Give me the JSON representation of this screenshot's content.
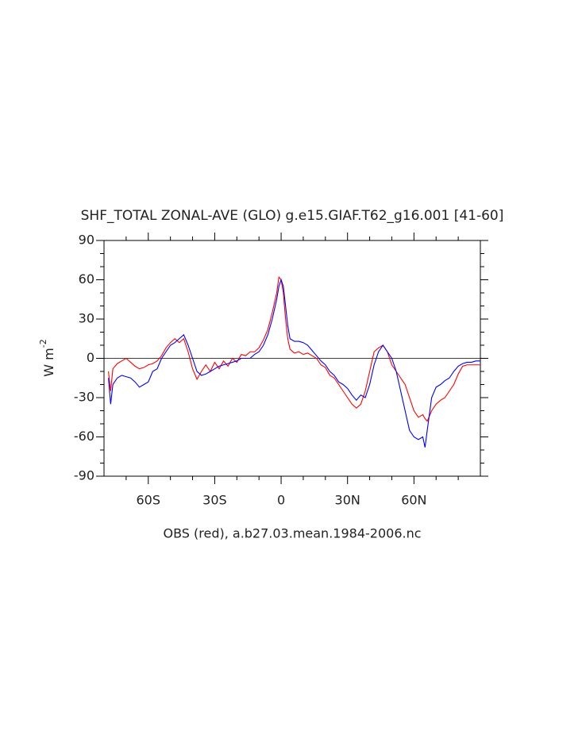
{
  "chart_data": {
    "type": "line",
    "title": "SHF_TOTAL ZONAL-AVE (GLO) g.e15.GIAF.T62_g16.001 [41-60]",
    "subtitle": "OBS (red), a.b27.03.mean.1984-2006.nc",
    "y_label": {
      "base": "W m",
      "exponent": "-2"
    },
    "x": [
      -78,
      -77,
      -76,
      -74,
      -72,
      -70,
      -68,
      -66,
      -64,
      -62,
      -60,
      -58,
      -56,
      -54,
      -52,
      -50,
      -48,
      -46,
      -44,
      -42,
      -40,
      -38,
      -36,
      -34,
      -32,
      -30,
      -28,
      -26,
      -24,
      -22,
      -20,
      -18,
      -16,
      -14,
      -12,
      -10,
      -8,
      -6,
      -4,
      -2,
      -1,
      0,
      1,
      2,
      3,
      4,
      6,
      8,
      10,
      12,
      14,
      16,
      18,
      20,
      22,
      24,
      26,
      28,
      30,
      32,
      34,
      36,
      38,
      40,
      42,
      44,
      46,
      48,
      50,
      52,
      54,
      56,
      58,
      60,
      62,
      64,
      65,
      66,
      68,
      70,
      72,
      74,
      76,
      78,
      80,
      82,
      84,
      86,
      88,
      90
    ],
    "series": [
      {
        "color": "#ff0000",
        "values": [
          -10,
          -25,
          -8,
          -4,
          -2,
          0,
          -3,
          -6,
          -8,
          -7,
          -5,
          -4,
          -2,
          2,
          8,
          12,
          15,
          12,
          15,
          5,
          -8,
          -16,
          -10,
          -5,
          -10,
          -3,
          -8,
          -2,
          -6,
          0,
          -3,
          3,
          2,
          5,
          5,
          8,
          14,
          22,
          35,
          50,
          62,
          60,
          50,
          30,
          15,
          7,
          4,
          5,
          3,
          4,
          2,
          0,
          -5,
          -7,
          -13,
          -15,
          -20,
          -25,
          -30,
          -35,
          -38,
          -35,
          -25,
          -10,
          5,
          8,
          10,
          5,
          -5,
          -10,
          -15,
          -20,
          -30,
          -40,
          -45,
          -43,
          -46,
          -48,
          -40,
          -35,
          -32,
          -30,
          -25,
          -20,
          -12,
          -6,
          -5,
          -5,
          -5,
          -5
        ]
      },
      {
        "color": "#0000ff",
        "values": [
          -15,
          -35,
          -20,
          -15,
          -13,
          -14,
          -15,
          -18,
          -22,
          -20,
          -18,
          -10,
          -8,
          0,
          5,
          10,
          12,
          15,
          18,
          10,
          0,
          -10,
          -13,
          -12,
          -10,
          -8,
          -6,
          -5,
          -4,
          -3,
          -2,
          0,
          0,
          0,
          3,
          5,
          10,
          18,
          30,
          45,
          55,
          60,
          55,
          40,
          25,
          15,
          13,
          13,
          12,
          10,
          6,
          2,
          -2,
          -5,
          -10,
          -13,
          -18,
          -20,
          -23,
          -28,
          -32,
          -28,
          -30,
          -20,
          -5,
          5,
          10,
          5,
          0,
          -10,
          -25,
          -40,
          -55,
          -60,
          -62,
          -60,
          -68,
          -55,
          -30,
          -22,
          -20,
          -17,
          -15,
          -10,
          -6,
          -4,
          -3,
          -3,
          -2,
          -2
        ]
      }
    ],
    "xlim": [
      -80,
      90
    ],
    "ylim": [
      -90,
      90
    ],
    "xticks": [
      {
        "value": -60,
        "label": "60S"
      },
      {
        "value": -30,
        "label": "30S"
      },
      0,
      {
        "value": 30,
        "label": "30N"
      },
      {
        "value": 60,
        "label": "60N"
      }
    ],
    "yticks": [
      -90,
      -60,
      -30,
      0,
      30,
      60,
      90
    ],
    "xminorticks": [
      -70,
      -50,
      -40,
      -20,
      -10,
      10,
      20,
      40,
      50,
      70,
      80
    ],
    "yminorticks": [
      -80,
      -70,
      -50,
      -40,
      -20,
      -10,
      10,
      20,
      40,
      50,
      70,
      80
    ],
    "hline": 0
  }
}
